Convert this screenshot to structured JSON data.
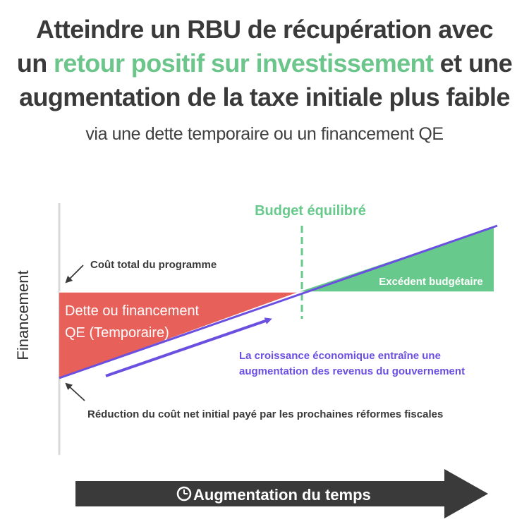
{
  "title": {
    "line1": "Atteindre un RBU de récupération avec",
    "line2_prefix": "un ",
    "line2_highlight": "retour positif sur investissement",
    "line2_suffix": " et une",
    "line3": "augmentation de la taxe initiale plus faible"
  },
  "subtitle": "via une dette temporaire ou un financement QE",
  "diagram": {
    "y_axis_label": "Financement",
    "balanced_budget_label": "Budget équilibré",
    "total_cost_label": "Coût total du programme",
    "debt_label_line1": "Dette ou financement",
    "debt_label_line2": "QE (Temporaire)",
    "surplus_label": "Excédent budgétaire",
    "growth_label_line1": "La croissance économique  entraîne une",
    "growth_label_line2": "augmentation des revenus du gouvernement",
    "reduction_label": "Réduction du coût net initial payé par les prochaines réformes fiscales",
    "time_arrow_label": "Augmentation du temps"
  },
  "colors": {
    "highlight_green": "#6cc58a",
    "surplus_green": "#67c98c",
    "debt_red": "#e8605a",
    "growth_purple": "#6a4fe0",
    "dark_text": "#3a3a3a",
    "time_arrow": "#3a3a3a"
  },
  "icons": {
    "time_arrow_icon": "clock-icon",
    "pointer_arrows": "arrow-icon"
  }
}
